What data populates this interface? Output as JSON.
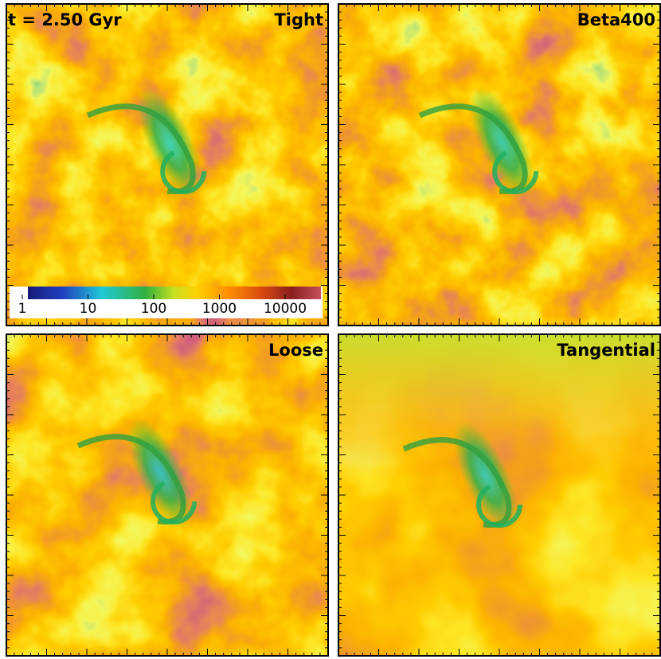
{
  "time_label": "t = 2.50 Gyr",
  "panels": [
    {
      "label": "Tight"
    },
    {
      "label": "Beta400"
    },
    {
      "label": "Loose"
    },
    {
      "label": "Tangential"
    }
  ],
  "colorbar": {
    "scale": "log",
    "ticks": [
      1,
      10,
      100,
      1000,
      10000
    ]
  }
}
